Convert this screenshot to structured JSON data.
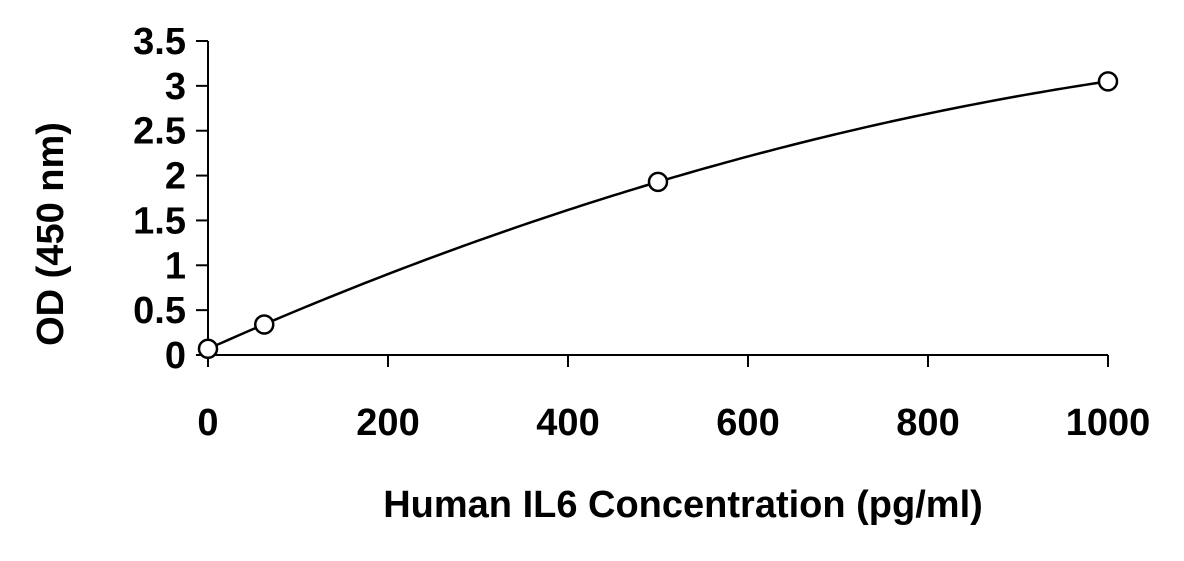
{
  "chart_data": {
    "type": "scatter",
    "xlabel": "Human IL6 Concentration (pg/ml)",
    "ylabel": "OD (450 nm)",
    "xlim": [
      0,
      1000
    ],
    "ylim": [
      0,
      3.5
    ],
    "x_ticks": [
      0,
      200,
      400,
      600,
      800,
      1000
    ],
    "y_ticks": [
      0,
      0.5,
      1,
      1.5,
      2,
      2.5,
      3,
      3.5
    ],
    "x_tick_labels": [
      "0",
      "200",
      "400",
      "600",
      "800",
      "1000"
    ],
    "y_tick_labels": [
      "0",
      "0.5",
      "1",
      "1.5",
      "2",
      "2.5",
      "3",
      "3.5"
    ],
    "grid": false,
    "legend": "none",
    "series": [
      {
        "points": [
          {
            "x": 0,
            "y": 0.07
          },
          {
            "x": 62.5,
            "y": 0.34
          },
          {
            "x": 500,
            "y": 1.93
          },
          {
            "x": 1000,
            "y": 3.05
          }
        ],
        "marker": "open-circle",
        "fit": "smooth-curve"
      }
    ]
  }
}
